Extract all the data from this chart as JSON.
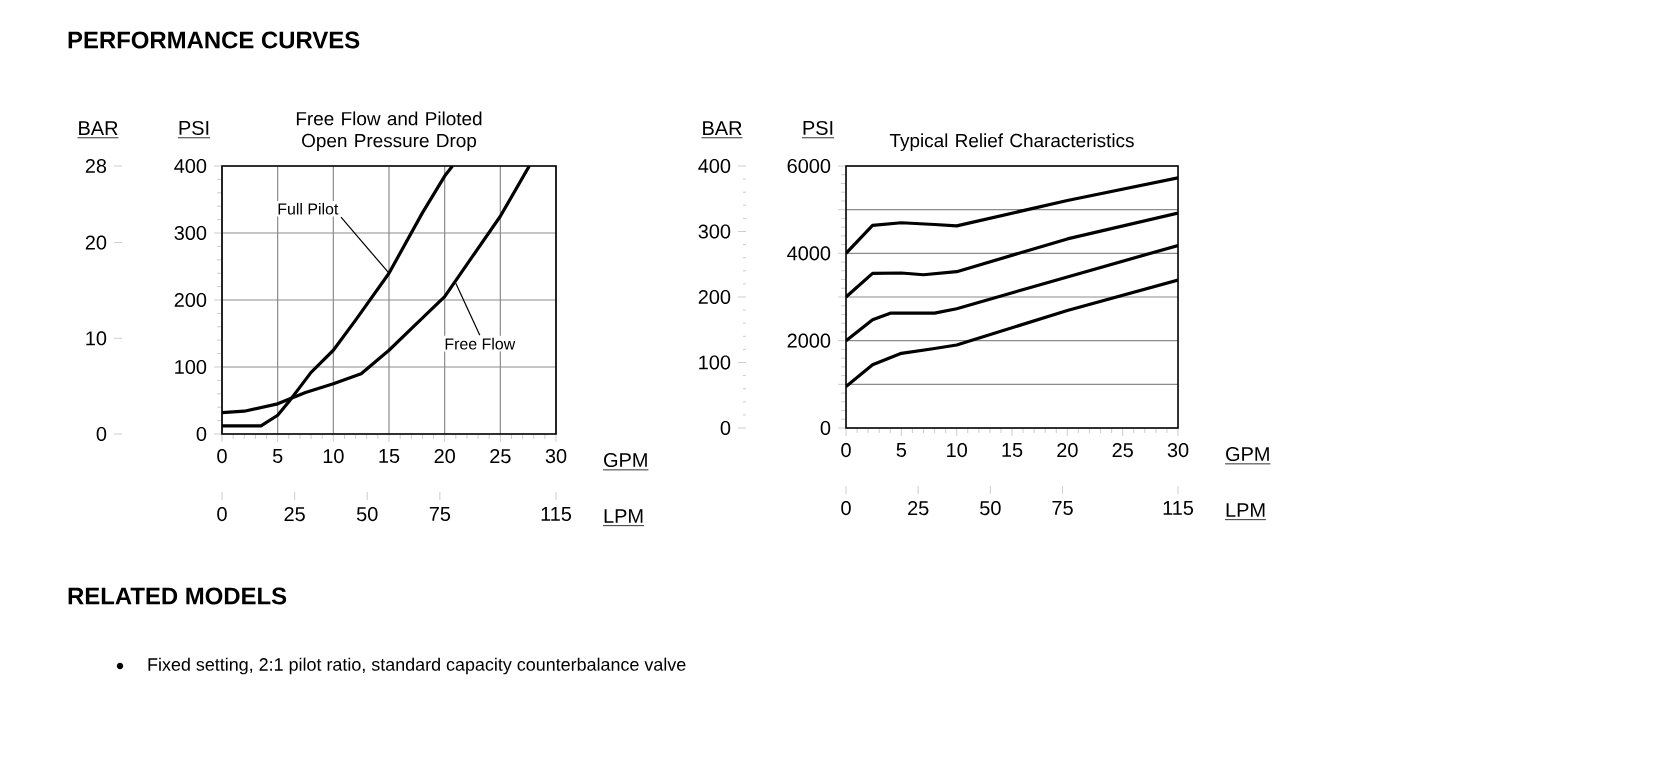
{
  "chart_data": [
    {
      "type": "other",
      "title": "PERFORMANCE CURVES"
    },
    {
      "type": "line",
      "title": "Free Flow and Piloted Open Pressure Drop",
      "xlabel": "GPM",
      "ylabel": "PSI",
      "y2label": "BAR",
      "x2label": "LPM",
      "xlim": [
        0,
        30
      ],
      "xticks": [
        0,
        5,
        10,
        15,
        20,
        25,
        30
      ],
      "ylim": [
        0,
        400
      ],
      "yticks": [
        0,
        100,
        200,
        300,
        400
      ],
      "y2lim": [
        0,
        28
      ],
      "y2ticks": [
        0,
        10,
        20,
        28
      ],
      "x2lim": [
        0,
        115
      ],
      "x2ticks": [
        0,
        25,
        50,
        75,
        115
      ],
      "grid": true,
      "series": [
        {
          "color": "#000000",
          "x": [
            0,
            2,
            3.5,
            5,
            6,
            7,
            8,
            10,
            12,
            15,
            18,
            20,
            20.7
          ],
          "values": [
            12,
            12,
            12,
            28,
            48,
            70,
            92,
            125,
            170,
            240,
            330,
            385,
            400
          ]
        },
        {
          "color": "#000000",
          "x": [
            0,
            2,
            5,
            7.5,
            10,
            12.5,
            15,
            17.5,
            20,
            22.5,
            25,
            27.6
          ],
          "values": [
            32,
            34,
            45,
            62,
            75,
            90,
            125,
            165,
            205,
            265,
            325,
            400
          ]
        }
      ],
      "annotations": [
        {
          "text": "Full Pilot",
          "x": 15,
          "y": 240
        },
        {
          "text": "Free Flow",
          "x": 21,
          "y": 225
        }
      ]
    },
    {
      "type": "line",
      "title": "Typical Relief Characteristics",
      "xlabel": "GPM",
      "ylabel": "PSI",
      "y2label": "BAR",
      "x2label": "LPM",
      "xlim": [
        0,
        30
      ],
      "xticks": [
        0,
        5,
        10,
        15,
        20,
        25,
        30
      ],
      "ylim": [
        0,
        6000
      ],
      "yticks": [
        0,
        {
          "value": 1000,
          "label": null
        },
        2000,
        {
          "value": 3000,
          "label": null
        },
        4000,
        {
          "value": 5000,
          "label": null
        },
        6000
      ],
      "y2lim": [
        0,
        400
      ],
      "y2ticks": [
        0,
        100,
        200,
        300,
        400
      ],
      "x2lim": [
        0,
        115
      ],
      "x2ticks": [
        0,
        25,
        50,
        75,
        115
      ],
      "grid": "y",
      "series": [
        {
          "color": "#000000",
          "x": [
            0,
            2.4,
            5,
            8,
            10,
            20,
            30
          ],
          "values": [
            4000,
            4640,
            4700,
            4660,
            4630,
            5210,
            5730
          ]
        },
        {
          "color": "#000000",
          "x": [
            0,
            2.4,
            5,
            7,
            10,
            20,
            30
          ],
          "values": [
            3000,
            3540,
            3550,
            3510,
            3580,
            4330,
            4920
          ]
        },
        {
          "color": "#000000",
          "x": [
            0,
            2.4,
            4,
            8,
            10,
            20,
            30
          ],
          "values": [
            2000,
            2480,
            2630,
            2630,
            2730,
            3460,
            4180
          ]
        },
        {
          "color": "#000000",
          "x": [
            0,
            2.4,
            5,
            8,
            10,
            20,
            30
          ],
          "values": [
            950,
            1450,
            1710,
            1820,
            1900,
            2690,
            3390
          ]
        }
      ]
    },
    {
      "type": "other",
      "title": "RELATED MODELS",
      "annotations": [
        "Fixed setting, 2:1 pilot ratio, standard capacity counterbalance valve"
      ]
    }
  ]
}
